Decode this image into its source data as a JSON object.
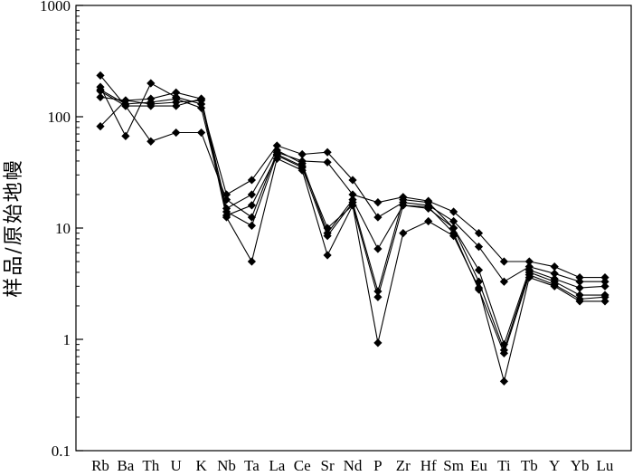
{
  "chart_data": {
    "type": "line",
    "ylabel": "样品/原始地幔",
    "yscale": "log",
    "ylim": [
      0.1,
      1000
    ],
    "y_ticks": [
      "0.1",
      "1",
      "10",
      "100",
      "1000"
    ],
    "categories": [
      "Rb",
      "Ba",
      "Th",
      "U",
      "K",
      "Nb",
      "Ta",
      "La",
      "Ce",
      "Sr",
      "Nd",
      "P",
      "Zr",
      "Hf",
      "Sm",
      "Eu",
      "Ti",
      "Tb",
      "Y",
      "Yb",
      "Lu"
    ],
    "grid": false,
    "legend": "none",
    "marker": "diamond",
    "color": "#000000",
    "series": [
      {
        "values": [
          235,
          125,
          60,
          72,
          72,
          18,
          12.5,
          48,
          40,
          39,
          20,
          17,
          19,
          17.5,
          14,
          9,
          5,
          5,
          4.5,
          3.6,
          3.6
        ]
      },
      {
        "values": [
          185,
          67,
          200,
          150,
          130,
          20,
          27,
          55,
          46,
          48,
          27,
          12.5,
          17,
          16,
          11.5,
          6.8,
          3.3,
          4.5,
          3.9,
          3.3,
          3.3
        ]
      },
      {
        "values": [
          170,
          125,
          125,
          125,
          145,
          15,
          20,
          50,
          38,
          9,
          18,
          6.5,
          16,
          15,
          10,
          4.2,
          0.9,
          4.2,
          3.5,
          2.9,
          3.0
        ]
      },
      {
        "values": [
          150,
          140,
          145,
          165,
          145,
          13,
          16,
          45,
          35,
          8.5,
          17,
          2.7,
          18,
          17,
          10,
          3.3,
          0.8,
          4.0,
          3.3,
          2.5,
          2.5
        ]
      },
      {
        "values": [
          175,
          130,
          135,
          145,
          120,
          14,
          10.5,
          46,
          36,
          10,
          16,
          2.4,
          16,
          15.5,
          9,
          2.8,
          0.75,
          3.8,
          3.1,
          2.3,
          2.4
        ]
      },
      {
        "values": [
          82,
          140,
          130,
          135,
          140,
          12.5,
          5,
          42,
          33,
          5.7,
          16,
          0.93,
          9,
          11.5,
          8.5,
          2.9,
          0.42,
          3.6,
          3.0,
          2.2,
          2.2
        ]
      }
    ]
  }
}
